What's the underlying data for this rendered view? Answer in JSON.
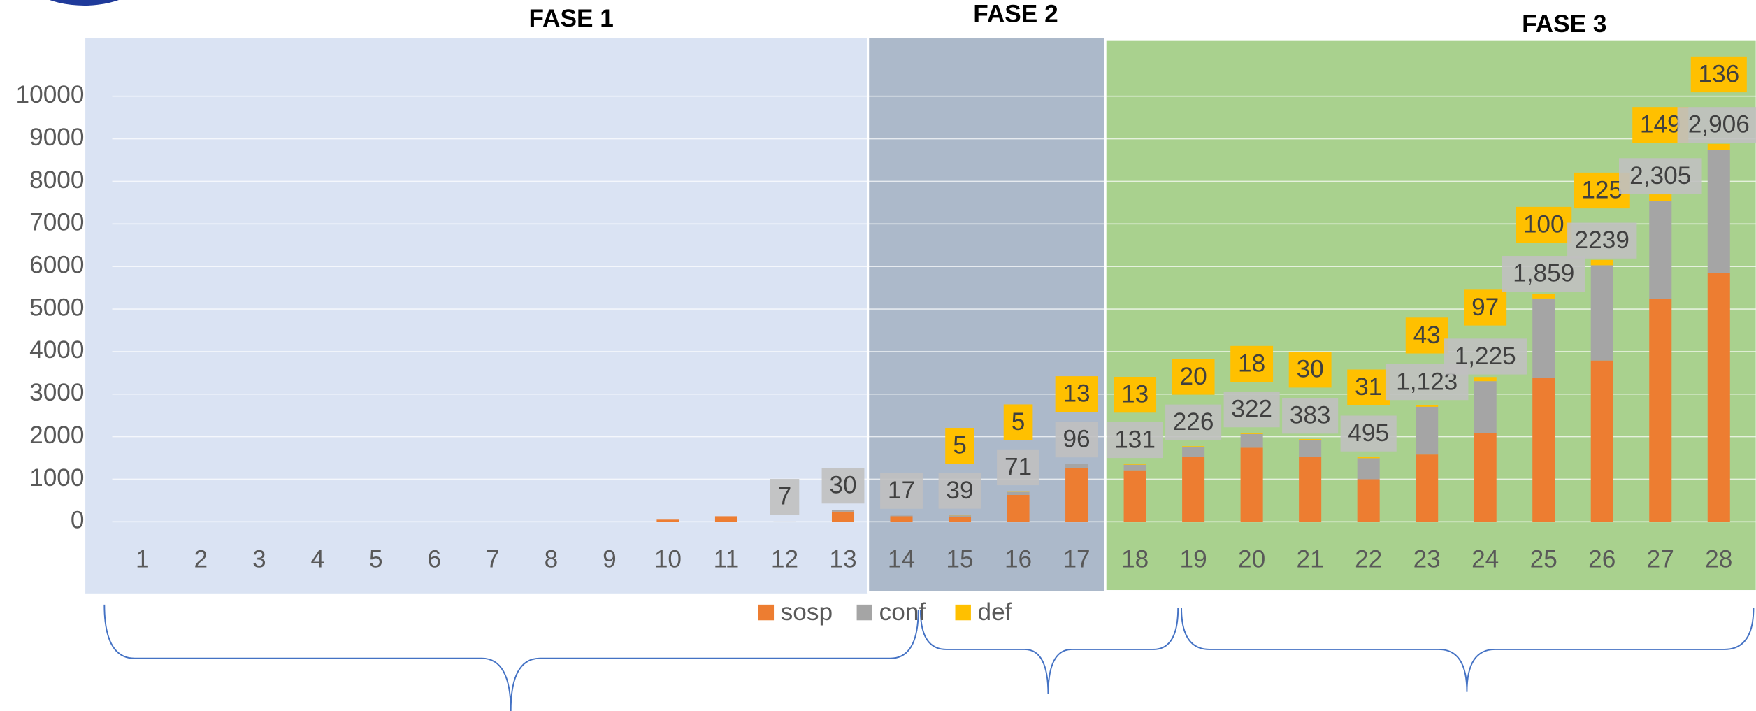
{
  "chart_data": {
    "type": "stacked_bar",
    "phases": [
      {
        "label": "FASE 1"
      },
      {
        "label": "FASE 2"
      },
      {
        "label": "FASE 3"
      }
    ],
    "categories": [
      "1",
      "2",
      "3",
      "4",
      "5",
      "6",
      "7",
      "8",
      "9",
      "10",
      "11",
      "12",
      "13",
      "14",
      "15",
      "16",
      "17",
      "18",
      "19",
      "20",
      "21",
      "22",
      "23",
      "24",
      "25",
      "26",
      "27",
      "28"
    ],
    "series": [
      {
        "name": "sosp",
        "color": "#ed7d31",
        "values": [
          0,
          0,
          0,
          0,
          0,
          0,
          0,
          0,
          0,
          50,
          130,
          0,
          240,
          130,
          110,
          630,
          1260,
          1210,
          1530,
          1740,
          1530,
          1000,
          1580,
          2080,
          3390,
          3790,
          5240,
          5840
        ],
        "value_labels": [
          null,
          null,
          null,
          null,
          null,
          null,
          null,
          null,
          null,
          null,
          null,
          null,
          null,
          null,
          null,
          null,
          null,
          null,
          null,
          null,
          null,
          null,
          null,
          null,
          null,
          null,
          null,
          null
        ]
      },
      {
        "name": "conf",
        "color": "#a5a5a5",
        "values": [
          0,
          0,
          0,
          0,
          0,
          0,
          0,
          0,
          0,
          0,
          0,
          7,
          30,
          17,
          39,
          71,
          96,
          131,
          226,
          322,
          383,
          495,
          1123,
          1225,
          1859,
          2239,
          2305,
          2906
        ],
        "value_labels": [
          null,
          null,
          null,
          null,
          null,
          null,
          null,
          null,
          null,
          null,
          null,
          "7",
          "30",
          "17",
          "39",
          "71",
          "96",
          "131",
          "226",
          "322",
          "383",
          "495",
          "1,123",
          "1,225",
          "1,859",
          "2239",
          "2,305",
          "2,906"
        ]
      },
      {
        "name": "def",
        "color": "#ffc000",
        "values": [
          0,
          0,
          0,
          0,
          0,
          0,
          0,
          0,
          0,
          0,
          0,
          0,
          0,
          0,
          5,
          5,
          13,
          13,
          20,
          18,
          30,
          31,
          43,
          97,
          100,
          125,
          149,
          136
        ],
        "value_labels": [
          null,
          null,
          null,
          null,
          null,
          null,
          null,
          null,
          null,
          null,
          null,
          null,
          null,
          null,
          "5",
          "5",
          "13",
          "13",
          "20",
          "18",
          "30",
          "31",
          "43",
          "97",
          "100",
          "125",
          "149",
          "136"
        ]
      }
    ],
    "ylim": [
      0,
      10000
    ],
    "yticks": [
      0,
      1000,
      2000,
      3000,
      4000,
      5000,
      6000,
      7000,
      8000,
      9000,
      10000
    ],
    "grid": true,
    "legend": "bottom"
  }
}
